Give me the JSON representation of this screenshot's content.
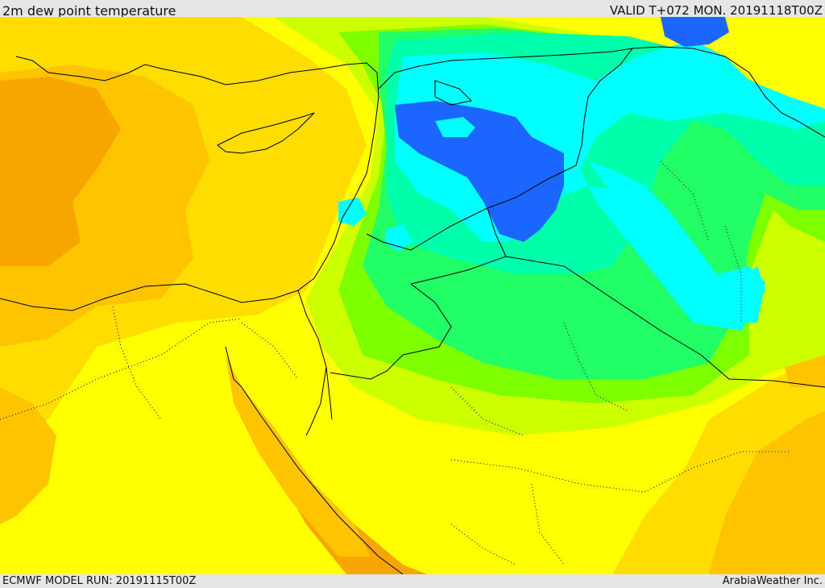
{
  "header": {
    "title": "2m dew point temperature",
    "valid": "VALID T+072 MON. 20191118T00Z"
  },
  "footer": {
    "model_run": "ECMWF MODEL RUN: 20191115T00Z",
    "credit": "ArabiaWeather Inc."
  },
  "colors": {
    "darkest_orange": "#f7a600",
    "orange": "#ffc400",
    "gold": "#ffdd00",
    "yellow": "#ffff00",
    "yellow_green": "#ccff00",
    "lime": "#7dff00",
    "green": "#22ff66",
    "aqua_green": "#00ffaa",
    "cyan": "#00ffff",
    "blue": "#1a66ff"
  }
}
